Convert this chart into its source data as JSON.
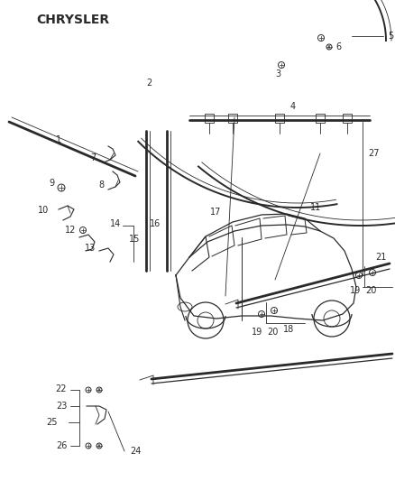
{
  "title": "CHRYSLER",
  "bg_color": "#ffffff",
  "line_color": "#2a2a2a",
  "fig_width": 4.38,
  "fig_height": 5.33,
  "dpi": 100
}
